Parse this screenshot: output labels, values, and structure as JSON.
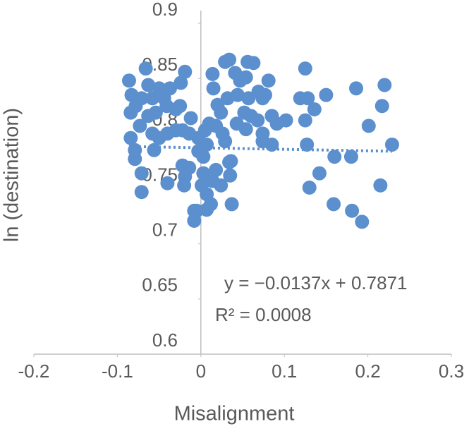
{
  "chart_data": {
    "type": "scatter",
    "x_label": "Misalignment",
    "y_label": "ln (destination)",
    "color": "#5b8fcd",
    "xlim": [
      -0.2,
      0.3
    ],
    "xticks": [
      -0.2,
      -0.1,
      0,
      0.1,
      0.2,
      0.3
    ],
    "ylim": [
      0.6,
      0.9
    ],
    "yticks": [
      0.6,
      0.65,
      0.7,
      0.75,
      0.8,
      0.85,
      0.9
    ],
    "grid": false,
    "x": [
      -0.086,
      -0.066,
      -0.083,
      -0.078,
      -0.084,
      -0.084,
      -0.073,
      -0.079,
      -0.071,
      -0.071,
      -0.063,
      -0.058,
      -0.05,
      -0.044,
      -0.054,
      -0.063,
      -0.058,
      -0.05,
      -0.04,
      -0.056,
      -0.04,
      -0.041,
      -0.03,
      -0.024,
      -0.019,
      -0.025,
      -0.03,
      -0.022,
      -0.014,
      -0.022,
      -0.019,
      -0.02,
      -0.014,
      -0.008,
      -0.008,
      0.003,
      0.007,
      -0.003,
      0.005,
      0.01,
      0.003,
      0.001,
      0.007,
      0.012,
      0.007,
      -0.005,
      0.018,
      0.024,
      0.014,
      0.015,
      0.02,
      0.024,
      0.018,
      0.026,
      0.029,
      0.036,
      0.037,
      0.029,
      0.035,
      0.034,
      0.032,
      0.041,
      0.047,
      0.056,
      0.063,
      0.054,
      0.044,
      0.057,
      0.069,
      0.074,
      0.081,
      0.077,
      0.052,
      0.06,
      0.068,
      0.043,
      0.054,
      0.074,
      0.085,
      0.091,
      0.102,
      0.074,
      0.085,
      0.125,
      0.119,
      0.128,
      0.136,
      0.15,
      0.125,
      0.127,
      0.142,
      0.13,
      0.16,
      0.18,
      0.186,
      0.22,
      0.217,
      0.201,
      0.229,
      0.215,
      0.159,
      0.181,
      0.193,
      -0.079,
      -0.012,
      0.034,
      0.014,
      -0.071,
      -0.037,
      -0.003
    ],
    "values": [
      0.848,
      0.859,
      0.835,
      0.825,
      0.819,
      0.796,
      0.807,
      0.777,
      0.764,
      0.747,
      0.844,
      0.832,
      0.841,
      0.832,
      0.819,
      0.816,
      0.8,
      0.796,
      0.8,
      0.785,
      0.755,
      0.825,
      0.822,
      0.846,
      0.856,
      0.825,
      0.803,
      0.803,
      0.8,
      0.771,
      0.761,
      0.753,
      0.769,
      0.73,
      0.721,
      0.779,
      0.79,
      0.796,
      0.803,
      0.809,
      0.764,
      0.753,
      0.745,
      0.736,
      0.731,
      0.73,
      0.767,
      0.753,
      0.757,
      0.841,
      0.826,
      0.819,
      0.807,
      0.8,
      0.793,
      0.775,
      0.736,
      0.865,
      0.762,
      0.774,
      0.832,
      0.855,
      0.848,
      0.865,
      0.864,
      0.851,
      0.835,
      0.832,
      0.838,
      0.832,
      0.848,
      0.835,
      0.819,
      0.816,
      0.812,
      0.809,
      0.804,
      0.8,
      0.816,
      0.809,
      0.812,
      0.793,
      0.79,
      0.859,
      0.832,
      0.832,
      0.822,
      0.835,
      0.812,
      0.79,
      0.764,
      0.751,
      0.779,
      0.779,
      0.841,
      0.844,
      0.825,
      0.807,
      0.79,
      0.753,
      0.736,
      0.73,
      0.72,
      0.785,
      0.814,
      0.867,
      0.854,
      0.832,
      0.841,
      0.784
    ],
    "trendline": {
      "slope": -0.0137,
      "intercept": 0.7871,
      "equation": "y = −0.0137x + 0.7871",
      "r_squared_label": "R² = 0.0008"
    }
  }
}
